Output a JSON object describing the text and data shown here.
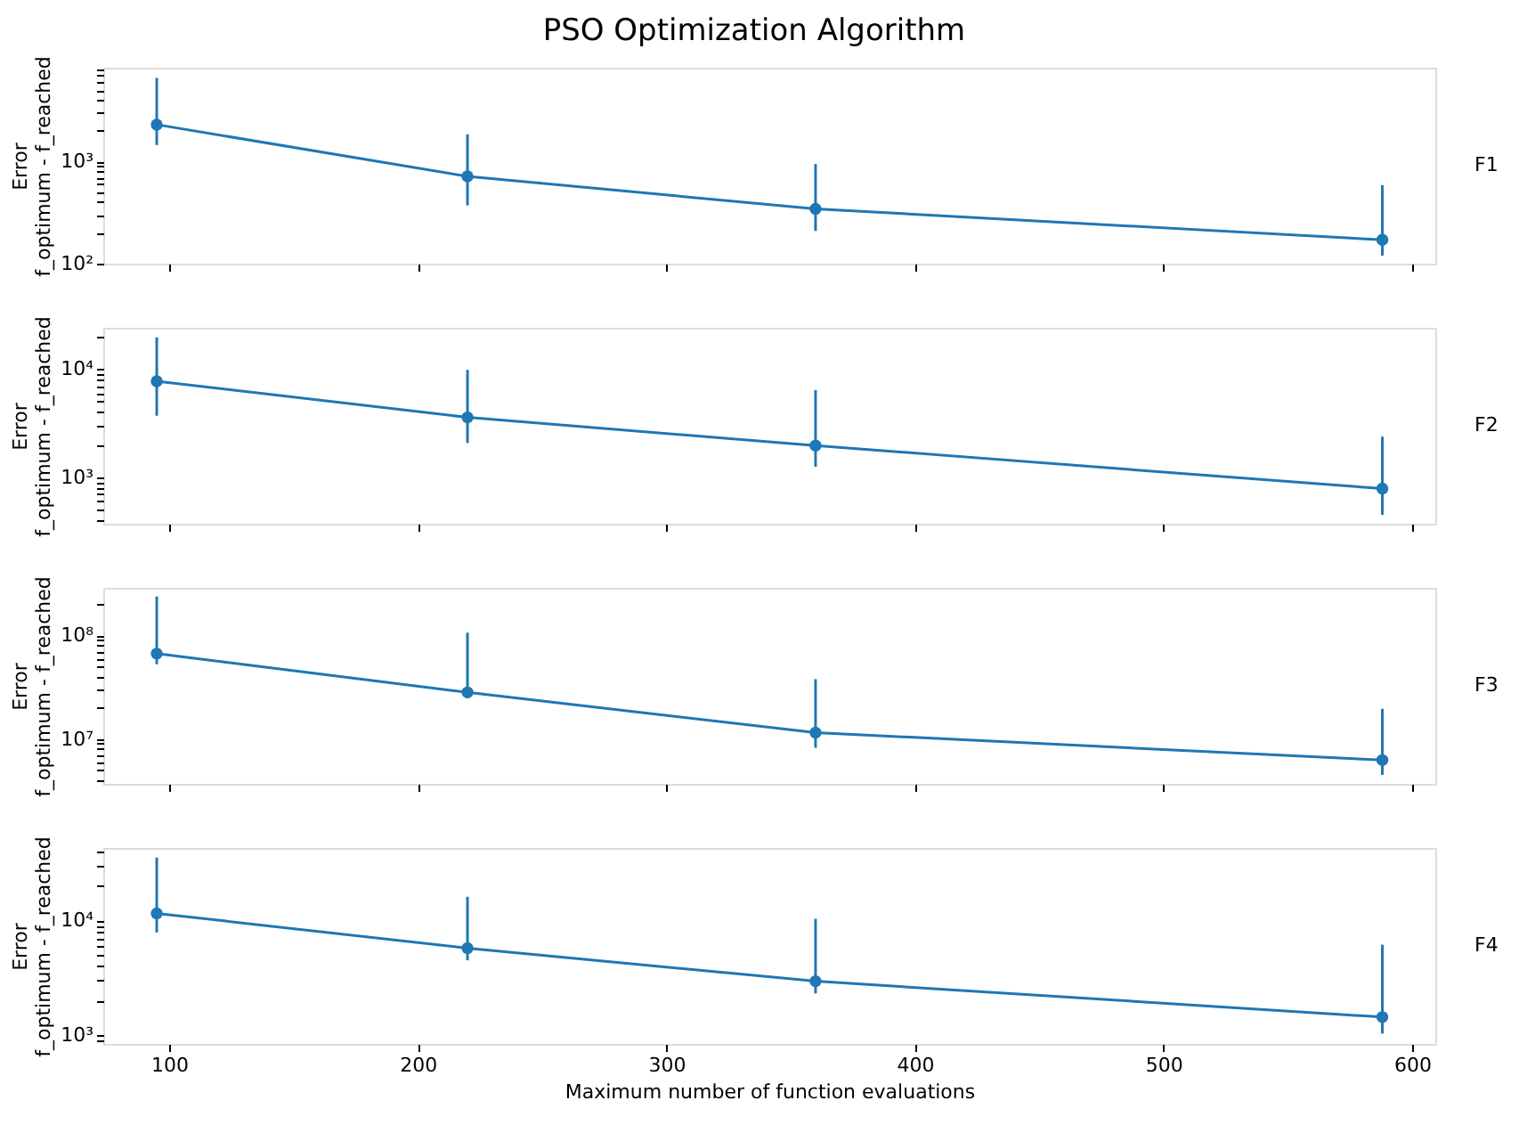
{
  "chart_data": [
    {
      "type": "line",
      "title": "PSO Optimization Algorithm",
      "ylabel": "Error\nf_optimum - f_reached",
      "annotations": [
        "F1"
      ],
      "x": [
        95,
        220,
        360,
        588
      ],
      "series": [
        {
          "color": "#1f77b4",
          "values": [
            2300,
            715,
            344,
            171
          ],
          "errors": [
            [
              1450,
              6600
            ],
            [
              372,
              1850
            ],
            [
              209,
              944
            ],
            [
              120,
              587
            ]
          ]
        }
      ],
      "xlim": [
        73.5,
        609.3
      ],
      "xticks": [
        {
          "value": 100,
          "label": null
        },
        {
          "value": 200,
          "label": null
        },
        {
          "value": 300,
          "label": null
        },
        {
          "value": 400,
          "label": null
        },
        {
          "value": 500,
          "label": null
        },
        {
          "value": 600,
          "label": null
        }
      ],
      "ylim": [
        100,
        8300
      ],
      "yticks": [
        {
          "value": 100,
          "label": "10²"
        },
        {
          "value": 200,
          "label": null
        },
        {
          "value": 300,
          "label": null
        },
        {
          "value": 400,
          "label": null
        },
        {
          "value": 500,
          "label": null
        },
        {
          "value": 600,
          "label": null
        },
        {
          "value": 700,
          "label": null
        },
        {
          "value": 800,
          "label": null
        },
        {
          "value": 900,
          "label": null
        },
        {
          "value": 1000,
          "label": "10³"
        },
        {
          "value": 2000,
          "label": null
        },
        {
          "value": 3000,
          "label": null
        },
        {
          "value": 4000,
          "label": null
        },
        {
          "value": 5000,
          "label": null
        },
        {
          "value": 6000,
          "label": null
        },
        {
          "value": 7000,
          "label": null
        },
        {
          "value": 8000,
          "label": null
        }
      ],
      "log": "y",
      "grid": false,
      "marker": "circle",
      "line_style": "solid",
      "tick_labels": "y"
    },
    {
      "type": "line",
      "ylabel": "Error\nf_optimum - f_reached",
      "annotations": [
        "F2"
      ],
      "x": [
        95,
        220,
        360,
        588
      ],
      "series": [
        {
          "color": "#1f77b4",
          "values": [
            7700,
            3570,
            1960,
            785
          ],
          "errors": [
            [
              3700,
              19600
            ],
            [
              2070,
              9800
            ],
            [
              1250,
              6370
            ],
            [
              449,
              2370
            ]
          ]
        }
      ],
      "xlim": [
        73.5,
        609.3
      ],
      "xticks": [
        {
          "value": 100,
          "label": null
        },
        {
          "value": 200,
          "label": null
        },
        {
          "value": 300,
          "label": null
        },
        {
          "value": 400,
          "label": null
        },
        {
          "value": 500,
          "label": null
        },
        {
          "value": 600,
          "label": null
        }
      ],
      "ylim": [
        372,
        24000
      ],
      "yticks": [
        {
          "value": 400,
          "label": null
        },
        {
          "value": 500,
          "label": null
        },
        {
          "value": 600,
          "label": null
        },
        {
          "value": 700,
          "label": null
        },
        {
          "value": 800,
          "label": null
        },
        {
          "value": 900,
          "label": null
        },
        {
          "value": 1000,
          "label": "10³"
        },
        {
          "value": 2000,
          "label": null
        },
        {
          "value": 3000,
          "label": null
        },
        {
          "value": 4000,
          "label": null
        },
        {
          "value": 5000,
          "label": null
        },
        {
          "value": 6000,
          "label": null
        },
        {
          "value": 7000,
          "label": null
        },
        {
          "value": 8000,
          "label": null
        },
        {
          "value": 9000,
          "label": null
        },
        {
          "value": 10000,
          "label": "10⁴"
        },
        {
          "value": 20000,
          "label": null
        }
      ],
      "log": "y",
      "grid": false,
      "marker": "circle",
      "line_style": "solid",
      "tick_labels": "y"
    },
    {
      "type": "line",
      "ylabel": "Error\nf_optimum - f_reached",
      "annotations": [
        "F3"
      ],
      "x": [
        95,
        220,
        360,
        588
      ],
      "series": [
        {
          "color": "#1f77b4",
          "values": [
            66500000,
            28100000,
            11500000,
            6240000
          ],
          "errors": [
            [
              52500000,
              237000000
            ],
            [
              26000000,
              106000000
            ],
            [
              8200000,
              37700000
            ],
            [
              4490000,
              19500000
            ]
          ]
        }
      ],
      "xlim": [
        73.5,
        609.3
      ],
      "xticks": [
        {
          "value": 100,
          "label": null
        },
        {
          "value": 200,
          "label": null
        },
        {
          "value": 300,
          "label": null
        },
        {
          "value": 400,
          "label": null
        },
        {
          "value": 500,
          "label": null
        },
        {
          "value": 600,
          "label": null
        }
      ],
      "ylim": [
        3680000,
        287000000
      ],
      "yticks": [
        {
          "value": 4000000,
          "label": null
        },
        {
          "value": 5000000,
          "label": null
        },
        {
          "value": 6000000,
          "label": null
        },
        {
          "value": 7000000,
          "label": null
        },
        {
          "value": 8000000,
          "label": null
        },
        {
          "value": 9000000,
          "label": null
        },
        {
          "value": 10000000,
          "label": "10⁷"
        },
        {
          "value": 20000000,
          "label": null
        },
        {
          "value": 30000000,
          "label": null
        },
        {
          "value": 40000000,
          "label": null
        },
        {
          "value": 50000000,
          "label": null
        },
        {
          "value": 60000000,
          "label": null
        },
        {
          "value": 70000000,
          "label": null
        },
        {
          "value": 80000000,
          "label": null
        },
        {
          "value": 90000000,
          "label": null
        },
        {
          "value": 100000000,
          "label": "10⁸"
        },
        {
          "value": 200000000,
          "label": null
        }
      ],
      "log": "y",
      "grid": false,
      "marker": "circle",
      "line_style": "solid",
      "tick_labels": "y"
    },
    {
      "type": "line",
      "xlabel": "Maximum number of function evaluations",
      "ylabel": "Error\nf_optimum - f_reached",
      "annotations": [
        "F4"
      ],
      "x": [
        95,
        220,
        360,
        588
      ],
      "series": [
        {
          "color": "#1f77b4",
          "values": [
            11480,
            5720,
            2950,
            1440
          ],
          "errors": [
            [
              7830,
              35100
            ],
            [
              4480,
              16000
            ],
            [
              2310,
              10300
            ],
            [
              1035,
              6130
            ]
          ]
        }
      ],
      "xlim": [
        73.5,
        609.3
      ],
      "xticks": [
        100,
        200,
        300,
        400,
        500,
        600
      ],
      "ylim": [
        841,
        42500
      ],
      "yticks": [
        {
          "value": 900,
          "label": null
        },
        {
          "value": 1000,
          "label": "10³"
        },
        {
          "value": 2000,
          "label": null
        },
        {
          "value": 3000,
          "label": null
        },
        {
          "value": 4000,
          "label": null
        },
        {
          "value": 5000,
          "label": null
        },
        {
          "value": 6000,
          "label": null
        },
        {
          "value": 7000,
          "label": null
        },
        {
          "value": 8000,
          "label": null
        },
        {
          "value": 9000,
          "label": null
        },
        {
          "value": 10000,
          "label": "10⁴"
        },
        {
          "value": 20000,
          "label": null
        },
        {
          "value": 30000,
          "label": null
        },
        {
          "value": 40000,
          "label": null
        }
      ],
      "log": "y",
      "grid": false,
      "marker": "circle",
      "line_style": "solid"
    }
  ]
}
